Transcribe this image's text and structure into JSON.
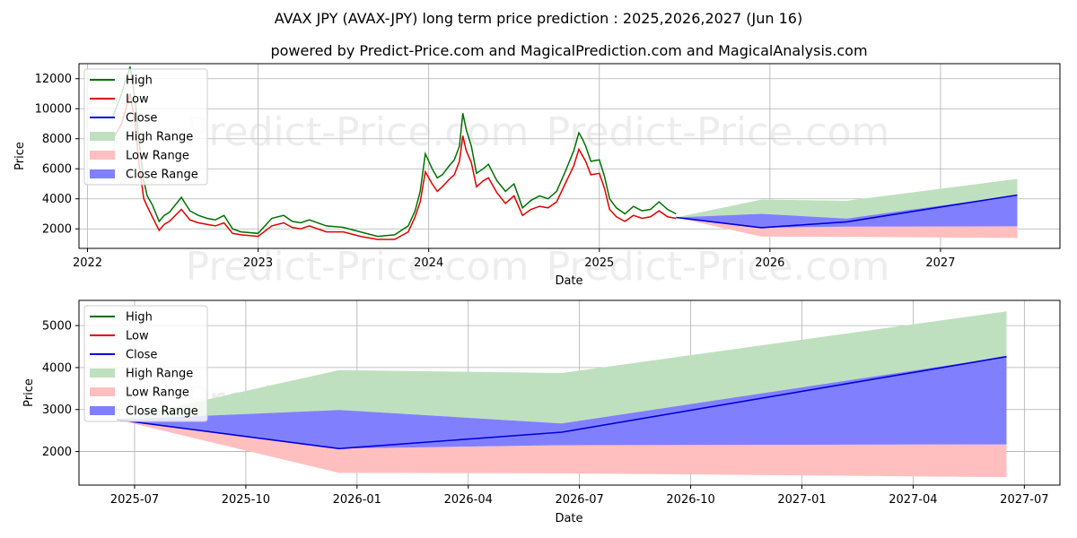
{
  "header": {
    "title": "AVAX JPY (AVAX-JPY) long term price prediction : 2025,2026,2027 (Jun 16)",
    "subtitle": "powered by Predict-Price.com and MagicalPrediction.com and MagicalAnalysis.com"
  },
  "watermark": "Predict-Price.com",
  "colors": {
    "high": "#007000",
    "low": "#e00000",
    "close": "#0000dd",
    "high_range": "#bfe0bf",
    "low_range": "#ffbfbf",
    "close_range": "#8080ff"
  },
  "chart_data": [
    {
      "type": "line",
      "name": "history-and-forecast",
      "xlabel": "Date",
      "ylabel": "Price",
      "xlim": [
        2021.95,
        2027.7
      ],
      "ylim": [
        700,
        13000
      ],
      "x_ticks": [
        2022,
        2023,
        2024,
        2025,
        2026,
        2027
      ],
      "x_tick_labels": [
        "2022",
        "2023",
        "2024",
        "2025",
        "2026",
        "2027"
      ],
      "y_ticks": [
        2000,
        4000,
        6000,
        8000,
        10000,
        12000
      ],
      "y_tick_labels": [
        "2000",
        "4000",
        "6000",
        "8000",
        "10000",
        "12000"
      ],
      "grid": true,
      "legend": [
        "High",
        "Low",
        "Close",
        "High Range",
        "Low Range",
        "Close Range"
      ],
      "legend_placement": "top-left",
      "history": {
        "x": [
          2022.15,
          2022.2,
          2022.25,
          2022.28,
          2022.3,
          2022.33,
          2022.35,
          2022.38,
          2022.42,
          2022.45,
          2022.48,
          2022.55,
          2022.6,
          2022.65,
          2022.7,
          2022.75,
          2022.8,
          2022.85,
          2022.9,
          2023.0,
          2023.08,
          2023.15,
          2023.2,
          2023.25,
          2023.3,
          2023.4,
          2023.5,
          2023.6,
          2023.7,
          2023.8,
          2023.88,
          2023.92,
          2023.95,
          2023.98,
          2024.02,
          2024.05,
          2024.08,
          2024.12,
          2024.15,
          2024.18,
          2024.2,
          2024.22,
          2024.25,
          2024.28,
          2024.32,
          2024.35,
          2024.4,
          2024.45,
          2024.5,
          2024.55,
          2024.6,
          2024.65,
          2024.7,
          2024.75,
          2024.8,
          2024.85,
          2024.88,
          2024.9,
          2024.92,
          2024.95,
          2025.0,
          2025.03,
          2025.06,
          2025.1,
          2025.15,
          2025.2,
          2025.25,
          2025.3,
          2025.35,
          2025.4,
          2025.45
        ],
        "high": [
          9500,
          11000,
          12800,
          10500,
          8000,
          5200,
          4200,
          3600,
          2500,
          2900,
          3100,
          4100,
          3200,
          2900,
          2700,
          2600,
          2900,
          2000,
          1800,
          1700,
          2700,
          2900,
          2500,
          2400,
          2600,
          2200,
          2100,
          1800,
          1500,
          1600,
          2200,
          3200,
          4500,
          7000,
          6000,
          5400,
          5600,
          6200,
          6600,
          7500,
          9700,
          8600,
          7500,
          5700,
          6000,
          6300,
          5200,
          4500,
          5000,
          3400,
          3900,
          4200,
          4000,
          4500,
          5800,
          7200,
          8400,
          8000,
          7500,
          6500,
          6600,
          5500,
          4000,
          3400,
          3000,
          3500,
          3200,
          3300,
          3800,
          3300,
          3000
        ],
        "low": [
          8000,
          9000,
          11000,
          9000,
          6500,
          4000,
          3500,
          2800,
          1900,
          2300,
          2500,
          3300,
          2600,
          2400,
          2300,
          2200,
          2400,
          1700,
          1600,
          1500,
          2200,
          2400,
          2100,
          2000,
          2200,
          1800,
          1800,
          1500,
          1300,
          1300,
          1800,
          2800,
          3800,
          5800,
          5000,
          4500,
          4800,
          5300,
          5600,
          6500,
          8200,
          7200,
          6400,
          4800,
          5200,
          5400,
          4400,
          3700,
          4200,
          2900,
          3300,
          3500,
          3400,
          3800,
          5000,
          6200,
          7300,
          6900,
          6500,
          5600,
          5700,
          4700,
          3300,
          2800,
          2500,
          2900,
          2700,
          2800,
          3200,
          2800,
          2700
        ]
      },
      "forecast": {
        "x": [
          2025.45,
          2025.95,
          2026.45,
          2027.45
        ],
        "close": [
          2760,
          2080,
          2470,
          4250
        ],
        "high_upper": [
          2760,
          3950,
          3870,
          5330
        ],
        "low_lower": [
          2760,
          1480,
          1470,
          1390
        ],
        "close_range_upper": [
          2760,
          3000,
          2690,
          4250
        ],
        "close_range_lower": [
          2760,
          2080,
          2150,
          2170
        ]
      }
    },
    {
      "type": "line",
      "name": "forecast-zoom",
      "xlabel": "Date",
      "ylabel": "Price",
      "xlim": [
        2025.375,
        2027.58
      ],
      "ylim": [
        1200,
        5600
      ],
      "x_ticks": [
        2025.5,
        2025.75,
        2026.0,
        2026.25,
        2026.5,
        2026.75,
        2027.0,
        2027.25,
        2027.5
      ],
      "x_tick_labels": [
        "2025-07",
        "2025-10",
        "2026-01",
        "2026-04",
        "2026-07",
        "2026-10",
        "2027-01",
        "2027-04",
        "2027-07"
      ],
      "y_ticks": [
        2000,
        3000,
        4000,
        5000
      ],
      "y_tick_labels": [
        "2000",
        "3000",
        "4000",
        "5000"
      ],
      "grid": true,
      "legend": [
        "High",
        "Low",
        "Close",
        "High Range",
        "Low Range",
        "Close Range"
      ],
      "legend_placement": "top-left",
      "forecast": {
        "x": [
          2025.46,
          2025.96,
          2026.46,
          2027.46
        ],
        "close": [
          2760,
          2070,
          2460,
          4260
        ],
        "high_upper": [
          2760,
          3940,
          3870,
          5340
        ],
        "low_lower": [
          2760,
          1490,
          1480,
          1390
        ],
        "close_range_upper": [
          2760,
          2990,
          2670,
          4260
        ],
        "close_range_lower": [
          2760,
          2070,
          2150,
          2170
        ]
      }
    }
  ]
}
